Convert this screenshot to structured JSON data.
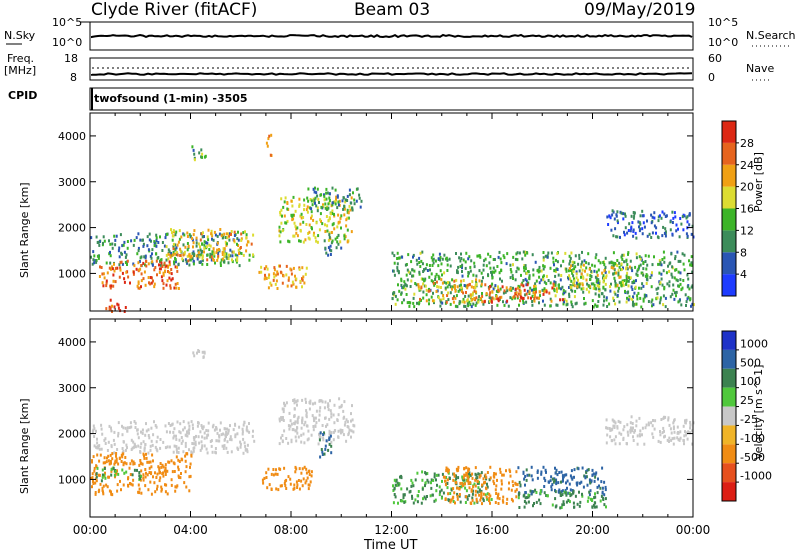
{
  "header": {
    "station": "Clyde River (fitACF)",
    "beam": "Beam 03",
    "date": "09/May/2019"
  },
  "top_panel": {
    "nsky_label": "N.Sky",
    "nsearch_label": "N.Search",
    "left_ticks": [
      "10^5",
      "10^0"
    ],
    "right_ticks": [
      "10^5",
      "10^0"
    ]
  },
  "freq_panel": {
    "freq_label": "Freq.",
    "freq_unit": "[MHz]",
    "nave_label": "Nave",
    "left_ticks": [
      "18",
      "8"
    ],
    "right_ticks": [
      "60",
      "0"
    ],
    "cpid_label": "CPID",
    "cpid_value": "twofsound (1-min) -3505"
  },
  "colors": {
    "power": [
      "#1e3cff",
      "#2a56b4",
      "#3c8c5a",
      "#3cb428",
      "#dcdc32",
      "#f0a014",
      "#e6641e",
      "#dc2814"
    ],
    "velocity": [
      "#1e32c8",
      "#2d64a5",
      "#3c8250",
      "#50c83c",
      "#c8c8c8",
      "#f0b428",
      "#f08c14",
      "#e6501e",
      "#dc1e14"
    ],
    "grid": "#000000"
  },
  "chart_data": [
    {
      "type": "heatmap",
      "title": "Power",
      "xlabel": "Time UT",
      "ylabel": "Slant Range [km]",
      "x_ticks": [
        "00:00",
        "04:00",
        "08:00",
        "12:00",
        "16:00",
        "20:00",
        "00:00"
      ],
      "xlim_hours": [
        0,
        24
      ],
      "ylim": [
        180,
        4500
      ],
      "y_ticks": [
        1000,
        2000,
        3000,
        4000
      ],
      "colorbar": {
        "label": "Power [dB]",
        "ticks": [
          4,
          8,
          12,
          16,
          20,
          24,
          28
        ],
        "range": [
          0,
          32
        ]
      },
      "regions": [
        {
          "t": [
            0.0,
            6.0
          ],
          "r": [
            1200,
            1900
          ],
          "level": 10
        },
        {
          "t": [
            0.3,
            3.5
          ],
          "r": [
            700,
            1300
          ],
          "level": 26
        },
        {
          "t": [
            3.0,
            6.5
          ],
          "r": [
            1300,
            2000
          ],
          "level": 20
        },
        {
          "t": [
            0.6,
            1.4
          ],
          "r": [
            200,
            500
          ],
          "level": 28
        },
        {
          "t": [
            6.7,
            8.6
          ],
          "r": [
            700,
            1200
          ],
          "level": 22
        },
        {
          "t": [
            7.5,
            10.4
          ],
          "r": [
            1700,
            2700
          ],
          "level": 18
        },
        {
          "t": [
            8.6,
            10.8
          ],
          "r": [
            2400,
            2900
          ],
          "level": 10
        },
        {
          "t": [
            9.3,
            10.0
          ],
          "r": [
            1400,
            1900
          ],
          "level": 8
        },
        {
          "t": [
            12.0,
            24.0
          ],
          "r": [
            300,
            1500
          ],
          "level": 12
        },
        {
          "t": [
            13.0,
            15.5
          ],
          "r": [
            400,
            900
          ],
          "level": 22
        },
        {
          "t": [
            15.5,
            19.0
          ],
          "r": [
            400,
            800
          ],
          "level": 26
        },
        {
          "t": [
            19.0,
            21.5
          ],
          "r": [
            700,
            1300
          ],
          "level": 18
        },
        {
          "t": [
            20.5,
            24.0
          ],
          "r": [
            1800,
            2400
          ],
          "level": 6
        },
        {
          "t": [
            4.0,
            4.6
          ],
          "r": [
            3500,
            3800
          ],
          "level": 12
        },
        {
          "t": [
            7.0,
            7.2
          ],
          "r": [
            3600,
            4100
          ],
          "level": 24
        }
      ]
    },
    {
      "type": "heatmap",
      "title": "Velocity",
      "xlabel": "Time UT",
      "ylabel": "Slant Range [km]",
      "x_ticks": [
        "00:00",
        "04:00",
        "08:00",
        "12:00",
        "16:00",
        "20:00",
        "00:00"
      ],
      "xlim_hours": [
        0,
        24
      ],
      "ylim": [
        180,
        4500
      ],
      "y_ticks": [
        1000,
        2000,
        3000,
        4000
      ],
      "colorbar": {
        "label": "Velocity [m s^-1]",
        "ticks": [
          "1000",
          "500",
          "100",
          "25",
          "-25",
          "-100",
          "-500",
          "-1000"
        ]
      },
      "regions": [
        {
          "t": [
            0.0,
            6.5
          ],
          "r": [
            1600,
            2300
          ],
          "v": 0
        },
        {
          "t": [
            0.0,
            4.0
          ],
          "r": [
            700,
            1600
          ],
          "v": -200
        },
        {
          "t": [
            0.2,
            2.0
          ],
          "r": [
            1000,
            1300
          ],
          "v": 80
        },
        {
          "t": [
            6.8,
            8.8
          ],
          "r": [
            800,
            1300
          ],
          "v": -300
        },
        {
          "t": [
            7.5,
            10.5
          ],
          "r": [
            1800,
            2800
          ],
          "v": 0
        },
        {
          "t": [
            9.0,
            9.6
          ],
          "r": [
            1500,
            2100
          ],
          "v": 600
        },
        {
          "t": [
            12.0,
            16.0
          ],
          "r": [
            500,
            1200
          ],
          "v": 120
        },
        {
          "t": [
            14.0,
            17.0
          ],
          "r": [
            500,
            1300
          ],
          "v": -250
        },
        {
          "t": [
            17.0,
            20.5
          ],
          "r": [
            700,
            1300
          ],
          "v": 700
        },
        {
          "t": [
            17.0,
            20.5
          ],
          "r": [
            400,
            800
          ],
          "v": 150
        },
        {
          "t": [
            20.5,
            24.0
          ],
          "r": [
            1800,
            2400
          ],
          "v": 0
        },
        {
          "t": [
            4.0,
            4.6
          ],
          "r": [
            3600,
            3900
          ],
          "v": 0
        }
      ]
    }
  ]
}
